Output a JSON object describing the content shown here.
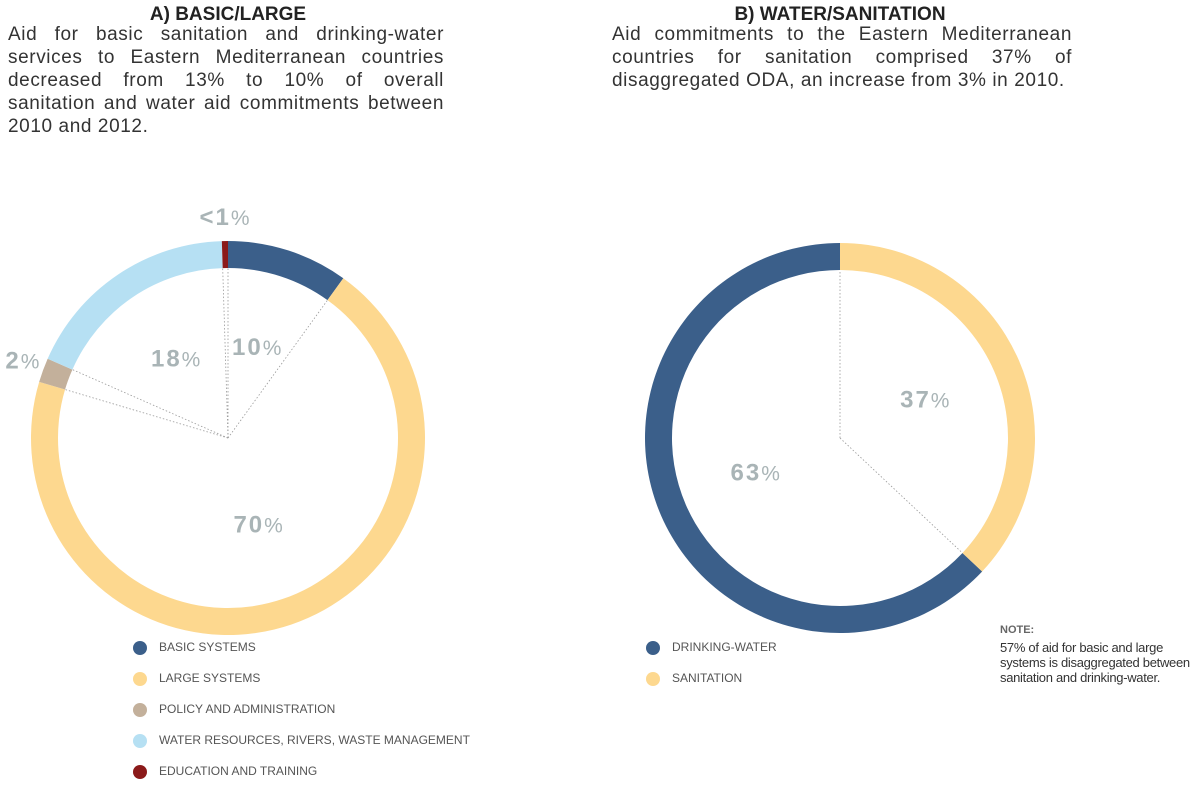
{
  "chart_data": [
    {
      "type": "donut",
      "title": "A) BASIC/LARGE",
      "description": "Aid for basic sanitation and drinking-water services to Eastern Mediterranean countries decreased from 13% to 10% of overall sanitation and water aid commitments between 2010 and 2012.",
      "categories": [
        "BASIC SYSTEMS",
        "LARGE SYSTEMS",
        "POLICY AND ADMINISTRATION",
        "WATER RESOURCES, RIVERS, WASTE MANAGEMENT",
        "EDUCATION AND TRAINING"
      ],
      "values": [
        10,
        70,
        2,
        18,
        0.5
      ],
      "value_labels": [
        "10%",
        "70%",
        "2%",
        "18%",
        "<1%"
      ],
      "colors": [
        "#3b5f8a",
        "#fdd88f",
        "#c3b09b",
        "#b6e0f3",
        "#8b1a1a"
      ],
      "clockwise": true
    },
    {
      "type": "donut",
      "title": "B) WATER/SANITATION",
      "description": "Aid commitments to the Eastern Mediterranean countries for sanitation comprised 37% of disaggregated ODA, an increase from 3% in 2010.",
      "categories": [
        "DRINKING-WATER",
        "SANITATION"
      ],
      "values": [
        63,
        37
      ],
      "value_labels": [
        "63%",
        "37%"
      ],
      "colors": [
        "#3b5f8a",
        "#fdd88f"
      ],
      "clockwise": false
    }
  ],
  "note": {
    "title": "NOTE:",
    "text": "57% of aid for basic and large systems is disaggregated between sanitation and drinking-water."
  }
}
